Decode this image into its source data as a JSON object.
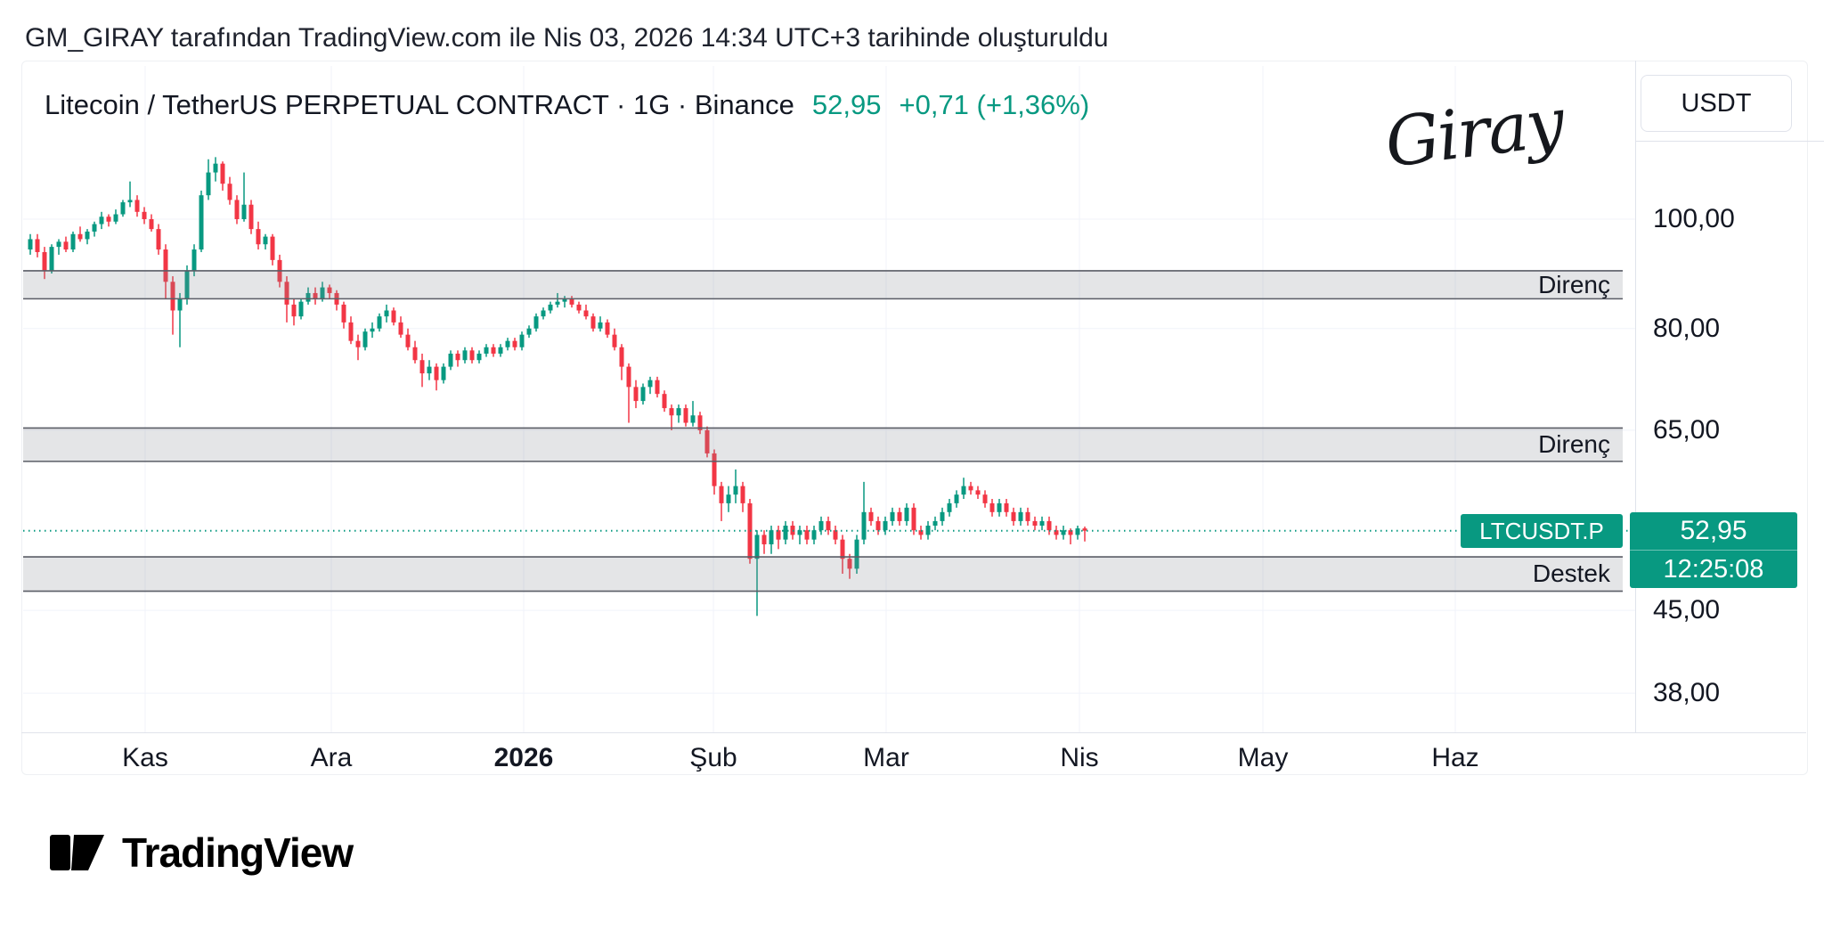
{
  "attribution": "GM_GIRAY tarafından TradingView.com ile Nis 03, 2026 14:34 UTC+3 tarihinde oluşturuldu",
  "header": {
    "symbol_title": "Litecoin / TetherUS PERPETUAL CONTRACT · 1G · Binance",
    "price": "52,95",
    "change": "+0,71 (+1,36%)"
  },
  "watermark": "Giray",
  "axis_right": {
    "currency_button": "USDT",
    "labels": [
      {
        "value": 100,
        "text": "100,00"
      },
      {
        "value": 80,
        "text": "80,00"
      },
      {
        "value": 65,
        "text": "65,00"
      },
      {
        "value": 45,
        "text": "45,00"
      },
      {
        "value": 38,
        "text": "38,00"
      }
    ]
  },
  "x_axis": {
    "labels": [
      {
        "text": "Kas",
        "bold": false
      },
      {
        "text": "Ara",
        "bold": false
      },
      {
        "text": "2026",
        "bold": true
      },
      {
        "text": "Şub",
        "bold": false
      },
      {
        "text": "Mar",
        "bold": false
      },
      {
        "text": "Nis",
        "bold": false
      },
      {
        "text": "May",
        "bold": false
      },
      {
        "text": "Haz",
        "bold": false
      }
    ]
  },
  "price_marker": {
    "symbol_label": "LTCUSDT.P",
    "price": "52,95",
    "countdown": "12:25:08",
    "value": 52.95
  },
  "logo": {
    "text": "TradingView"
  },
  "colors": {
    "up": "#089981",
    "down": "#f23645",
    "accent": "#089981",
    "text": "#131722",
    "band_fill": "rgba(134,137,147,0.22)",
    "band_border": "#5a5d66",
    "grid": "#f0f3fa"
  },
  "chart_data": {
    "type": "candlestick",
    "title": "Litecoin / TetherUS PERPETUAL CONTRACT · 1G · Binance",
    "symbol": "LTCUSDT.P",
    "exchange": "Binance",
    "interval": "1G",
    "scale": "log",
    "last_price": 52.95,
    "ylabel": "USDT",
    "y_ticks": [
      100,
      80,
      65,
      45,
      38
    ],
    "x_labels": [
      "Kas",
      "Ara",
      "2026",
      "Şub",
      "Mar",
      "Nis",
      "May",
      "Haz"
    ],
    "zones": [
      {
        "label": "Direnç",
        "top": 90,
        "bottom": 85
      },
      {
        "label": "Direnç",
        "top": 65.3,
        "bottom": 61
      },
      {
        "label": "Destek",
        "top": 50.2,
        "bottom": 46.8
      }
    ],
    "candles": [
      [
        94,
        97,
        93,
        96
      ],
      [
        96,
        97,
        92.5,
        93.5
      ],
      [
        93.5,
        94.5,
        88.5,
        90
      ],
      [
        90,
        95,
        89.5,
        94.5
      ],
      [
        94.5,
        96,
        93,
        95.5
      ],
      [
        95.5,
        96.5,
        93.5,
        94
      ],
      [
        94,
        97.5,
        93.5,
        97
      ],
      [
        97,
        98.5,
        95.5,
        96
      ],
      [
        96,
        98,
        95,
        97.5
      ],
      [
        97.5,
        99.5,
        96.5,
        99
      ],
      [
        99,
        101.5,
        98,
        100.5
      ],
      [
        100.5,
        101,
        98.5,
        99.5
      ],
      [
        99.5,
        102,
        99,
        101
      ],
      [
        101,
        104,
        100.5,
        103.5
      ],
      [
        103.5,
        108,
        102.5,
        104
      ],
      [
        104,
        105,
        100.5,
        101.5
      ],
      [
        101.5,
        102.5,
        99,
        100
      ],
      [
        100,
        101,
        97.5,
        98
      ],
      [
        98,
        99,
        93,
        94
      ],
      [
        94,
        95,
        85,
        88
      ],
      [
        88,
        89,
        79,
        83
      ],
      [
        83,
        86,
        77,
        85
      ],
      [
        85,
        91,
        84,
        90
      ],
      [
        90,
        95,
        89,
        94
      ],
      [
        94,
        106,
        93.5,
        105
      ],
      [
        105,
        113,
        104,
        110
      ],
      [
        110,
        113.5,
        108,
        112
      ],
      [
        112,
        112.5,
        106,
        107.5
      ],
      [
        107.5,
        109,
        103,
        104
      ],
      [
        104,
        105,
        99,
        100
      ],
      [
        100,
        110,
        99.5,
        103
      ],
      [
        103,
        104,
        97,
        98
      ],
      [
        98,
        99.5,
        94,
        95
      ],
      [
        95,
        97,
        94,
        96.5
      ],
      [
        96.5,
        97,
        91,
        92
      ],
      [
        92,
        93,
        87,
        88
      ],
      [
        88,
        89,
        81,
        84
      ],
      [
        84,
        85,
        80.5,
        82
      ],
      [
        82,
        85,
        81.5,
        84.5
      ],
      [
        84.5,
        87,
        84,
        86
      ],
      [
        86,
        87,
        84,
        85
      ],
      [
        85,
        88,
        84.5,
        87
      ],
      [
        87,
        87.5,
        85,
        86
      ],
      [
        86,
        86.5,
        83,
        84
      ],
      [
        84,
        84.5,
        80,
        81
      ],
      [
        81,
        82,
        77.5,
        78
      ],
      [
        78,
        79,
        75,
        77
      ],
      [
        77,
        80,
        76.5,
        79.5
      ],
      [
        79.5,
        81,
        78.5,
        80
      ],
      [
        80,
        82.5,
        79.5,
        82
      ],
      [
        82,
        84,
        81,
        83
      ],
      [
        83,
        83.5,
        80.5,
        81
      ],
      [
        81,
        82,
        78.5,
        79
      ],
      [
        79,
        80,
        76.5,
        77
      ],
      [
        77,
        78,
        74.5,
        75
      ],
      [
        75,
        76,
        71,
        73
      ],
      [
        73,
        75,
        72,
        74
      ],
      [
        74,
        74.5,
        70.5,
        72
      ],
      [
        72,
        74.5,
        71.5,
        74
      ],
      [
        74,
        76.5,
        73.5,
        76
      ],
      [
        76,
        76.5,
        74,
        75
      ],
      [
        75,
        77,
        74.5,
        76.5
      ],
      [
        76.5,
        77,
        74.5,
        75
      ],
      [
        75,
        76.5,
        74.5,
        76
      ],
      [
        76,
        77.5,
        75.5,
        77
      ],
      [
        77,
        77.5,
        75.5,
        76
      ],
      [
        76,
        77.5,
        75.5,
        77
      ],
      [
        77,
        78.5,
        76.5,
        78
      ],
      [
        78,
        78.5,
        76.5,
        77
      ],
      [
        77,
        79.5,
        76.5,
        79
      ],
      [
        79,
        80.5,
        78.5,
        80
      ],
      [
        80,
        82.5,
        79.5,
        82
      ],
      [
        82,
        83.5,
        81.5,
        83
      ],
      [
        83,
        84.5,
        82.5,
        84
      ],
      [
        84,
        86,
        83.5,
        84.5
      ],
      [
        84.5,
        85.5,
        83.5,
        85
      ],
      [
        85,
        85.5,
        83.5,
        84
      ],
      [
        84,
        84.5,
        82.5,
        83
      ],
      [
        83,
        84,
        81.5,
        82
      ],
      [
        82,
        82.5,
        79.5,
        80
      ],
      [
        80,
        82,
        79.5,
        81
      ],
      [
        81,
        81.5,
        78.5,
        79
      ],
      [
        79,
        80,
        76.5,
        77
      ],
      [
        77,
        77.5,
        72,
        74
      ],
      [
        74,
        74.5,
        66,
        71
      ],
      [
        71,
        72,
        68,
        69
      ],
      [
        69,
        71.5,
        68.5,
        71
      ],
      [
        71,
        72.5,
        70,
        72
      ],
      [
        72,
        72.5,
        69.5,
        70
      ],
      [
        70,
        70.5,
        67.5,
        68
      ],
      [
        68,
        68.5,
        65,
        67
      ],
      [
        67,
        68.5,
        66,
        68
      ],
      [
        68,
        68.5,
        65.5,
        66
      ],
      [
        66,
        69,
        65.5,
        67
      ],
      [
        67,
        67.5,
        64.5,
        65
      ],
      [
        65,
        65.5,
        61.5,
        62
      ],
      [
        62,
        62.5,
        57,
        58
      ],
      [
        58,
        58.5,
        54,
        56
      ],
      [
        56,
        58,
        55,
        57
      ],
      [
        57,
        60,
        56,
        58
      ],
      [
        58,
        58.5,
        55,
        56
      ],
      [
        56,
        56.5,
        49.5,
        50
      ],
      [
        50,
        53,
        44.5,
        52.5
      ],
      [
        52.5,
        53,
        50.5,
        51.5
      ],
      [
        51.5,
        53.5,
        50.5,
        53
      ],
      [
        53,
        53.5,
        51,
        52
      ],
      [
        52,
        54,
        51.5,
        53.5
      ],
      [
        53.5,
        54,
        52,
        52.5
      ],
      [
        52.5,
        53.5,
        51.5,
        53
      ],
      [
        53,
        53.5,
        51.5,
        52
      ],
      [
        52,
        53.5,
        51.5,
        53
      ],
      [
        53,
        54.5,
        52.5,
        54
      ],
      [
        54,
        54.5,
        52.5,
        53
      ],
      [
        53,
        53.5,
        51.5,
        52
      ],
      [
        52,
        52.5,
        48.5,
        50
      ],
      [
        50,
        50.5,
        48,
        49
      ],
      [
        49,
        52.5,
        48.5,
        52
      ],
      [
        52,
        58.5,
        51.5,
        55
      ],
      [
        55,
        55.5,
        53.5,
        54
      ],
      [
        54,
        54.5,
        52.5,
        53
      ],
      [
        53,
        54.5,
        52.5,
        54
      ],
      [
        54,
        55.5,
        53.5,
        55
      ],
      [
        55,
        55.5,
        53.5,
        54
      ],
      [
        54,
        56,
        53.5,
        55.5
      ],
      [
        55.5,
        56,
        52.5,
        53
      ],
      [
        53,
        53.5,
        52,
        52.5
      ],
      [
        52.5,
        54,
        52,
        53.5
      ],
      [
        53.5,
        54.5,
        53,
        54
      ],
      [
        54,
        55.5,
        53.5,
        55
      ],
      [
        55,
        56.5,
        54.5,
        56
      ],
      [
        56,
        57.5,
        55.5,
        57
      ],
      [
        57,
        59,
        56.5,
        58
      ],
      [
        58,
        58.5,
        57,
        57.5
      ],
      [
        57.5,
        58,
        56.5,
        57
      ],
      [
        57,
        57.5,
        55.5,
        56
      ],
      [
        56,
        56.5,
        54.5,
        55
      ],
      [
        55,
        56.5,
        54.5,
        56
      ],
      [
        56,
        56.5,
        54.5,
        55
      ],
      [
        55,
        55.5,
        53.5,
        54
      ],
      [
        54,
        55.5,
        53.5,
        55
      ],
      [
        55,
        55.5,
        53.5,
        54
      ],
      [
        54,
        54.5,
        53,
        53.5
      ],
      [
        53.5,
        54.5,
        53,
        54
      ],
      [
        54,
        54.5,
        52.5,
        53
      ],
      [
        53,
        53.5,
        52,
        52.5
      ],
      [
        52.5,
        53.5,
        52,
        53
      ],
      [
        53,
        53.2,
        51.5,
        52.5
      ],
      [
        52.5,
        53.5,
        52,
        53.2
      ],
      [
        53.2,
        53.4,
        51.8,
        52.95
      ]
    ]
  }
}
